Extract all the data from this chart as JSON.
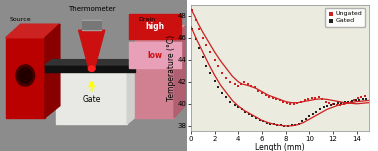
{
  "xlabel": "Length (mm)",
  "ylabel": "Temperature (°C)",
  "xlim": [
    0,
    15
  ],
  "ylim": [
    37.5,
    49
  ],
  "yticks": [
    38,
    40,
    42,
    44,
    46,
    48
  ],
  "xticks": [
    0,
    2,
    4,
    6,
    8,
    10,
    12,
    14
  ],
  "ungated_scatter_x": [
    0.1,
    0.4,
    0.7,
    1.0,
    1.3,
    1.6,
    2.0,
    2.3,
    2.6,
    3.0,
    3.3,
    3.7,
    4.0,
    4.2,
    4.5,
    4.8,
    5.1,
    5.4,
    5.7,
    6.0,
    6.3,
    6.6,
    6.9,
    7.2,
    7.5,
    7.8,
    8.1,
    8.4,
    8.7,
    9.0,
    9.3,
    9.6,
    9.9,
    10.2,
    10.5,
    10.8,
    11.1,
    11.4,
    11.7,
    12.0,
    12.3,
    12.6,
    12.9,
    13.2,
    13.5,
    13.8,
    14.1,
    14.4,
    14.7
  ],
  "ungated_scatter_y": [
    48.5,
    47.6,
    46.8,
    46.0,
    45.3,
    44.7,
    44.0,
    43.4,
    42.8,
    42.3,
    42.0,
    41.8,
    41.6,
    41.8,
    42.0,
    41.8,
    41.6,
    41.5,
    41.2,
    41.0,
    40.8,
    40.6,
    40.5,
    40.4,
    40.3,
    40.2,
    40.1,
    40.0,
    40.0,
    40.1,
    40.2,
    40.3,
    40.4,
    40.5,
    40.5,
    40.6,
    40.4,
    40.2,
    40.1,
    40.0,
    39.9,
    39.9,
    40.0,
    40.1,
    40.2,
    40.3,
    40.5,
    40.6,
    40.7
  ],
  "ungated_line_x": [
    0.0,
    0.3,
    0.6,
    1.0,
    1.5,
    2.0,
    2.5,
    3.0,
    3.5,
    4.0,
    4.3,
    4.7,
    5.0,
    5.5,
    6.0,
    6.5,
    7.0,
    7.5,
    8.0,
    8.5,
    9.0,
    9.5,
    10.0,
    10.5,
    11.0,
    11.5,
    12.0,
    12.5,
    13.0,
    13.5,
    14.0,
    14.5,
    15.0
  ],
  "ungated_line_y": [
    48.6,
    48.0,
    47.3,
    46.5,
    45.6,
    44.7,
    43.9,
    43.2,
    42.5,
    42.0,
    41.8,
    41.7,
    41.6,
    41.4,
    41.1,
    40.8,
    40.6,
    40.4,
    40.2,
    40.1,
    40.1,
    40.2,
    40.3,
    40.4,
    40.45,
    40.4,
    40.3,
    40.2,
    40.1,
    40.05,
    40.0,
    40.05,
    40.1
  ],
  "gated_scatter_x": [
    0.1,
    0.4,
    0.7,
    1.0,
    1.3,
    1.6,
    2.0,
    2.3,
    2.6,
    3.0,
    3.3,
    3.7,
    4.0,
    4.3,
    4.6,
    4.9,
    5.2,
    5.5,
    5.8,
    6.1,
    6.4,
    6.7,
    7.0,
    7.3,
    7.6,
    7.9,
    8.2,
    8.5,
    8.8,
    9.1,
    9.4,
    9.7,
    10.0,
    10.3,
    10.6,
    10.9,
    11.2,
    11.5,
    11.8,
    12.1,
    12.4,
    12.7,
    13.0,
    13.3,
    13.6,
    13.9,
    14.2,
    14.5,
    14.8
  ],
  "gated_scatter_y": [
    46.8,
    45.9,
    45.1,
    44.2,
    43.4,
    42.8,
    42.1,
    41.5,
    41.0,
    40.6,
    40.2,
    39.9,
    39.7,
    39.5,
    39.3,
    39.1,
    38.9,
    38.7,
    38.5,
    38.4,
    38.3,
    38.2,
    38.15,
    38.1,
    38.05,
    38.0,
    38.0,
    38.05,
    38.1,
    38.2,
    38.4,
    38.6,
    38.9,
    39.1,
    39.3,
    39.5,
    39.7,
    39.8,
    39.9,
    40.0,
    40.05,
    40.1,
    40.15,
    40.2,
    40.25,
    40.3,
    40.35,
    40.4,
    40.4
  ],
  "gated_line_x": [
    0.0,
    0.5,
    1.0,
    1.5,
    2.0,
    2.5,
    3.0,
    3.5,
    4.0,
    4.5,
    5.0,
    5.5,
    6.0,
    6.5,
    7.0,
    7.5,
    8.0,
    8.5,
    9.0,
    9.5,
    10.0,
    10.5,
    11.0,
    11.5,
    12.0,
    12.5,
    13.0,
    13.5,
    14.0,
    14.5,
    15.0
  ],
  "gated_line_y": [
    47.0,
    45.8,
    44.7,
    43.6,
    42.6,
    41.7,
    41.0,
    40.3,
    39.8,
    39.4,
    39.1,
    38.8,
    38.5,
    38.3,
    38.15,
    38.05,
    38.0,
    38.0,
    38.1,
    38.3,
    38.6,
    38.9,
    39.2,
    39.5,
    39.7,
    39.9,
    40.0,
    40.1,
    40.2,
    40.25,
    40.3
  ],
  "scatter_color_ungated": "#cc2020",
  "scatter_color_gated": "#202020",
  "line_color": "#cc2020",
  "bg_color": "#ebebdf",
  "marker_size": 3.5,
  "left_bg": "#8c8c8c",
  "source_color_front": "#bb0000",
  "source_color_top": "#cc2222",
  "source_color_side": "#880000",
  "drain_color_front": "#d08090",
  "drain_color_top": "#e0a0b0",
  "drain_color_side": "#b06070",
  "gate_color": "#e8e8e4",
  "gate_side_color": "#d0d0cc",
  "cnt_color": "#111111",
  "cnt_top_color": "#333333",
  "thermo_cone_color": "#cc1010",
  "thermo_metal_color": "#aaaaaa",
  "high_box_color": "#cc1010",
  "low_box_color": "#e8a0b8",
  "high_text_color": "#ffffff",
  "low_text_color": "#cc1010"
}
